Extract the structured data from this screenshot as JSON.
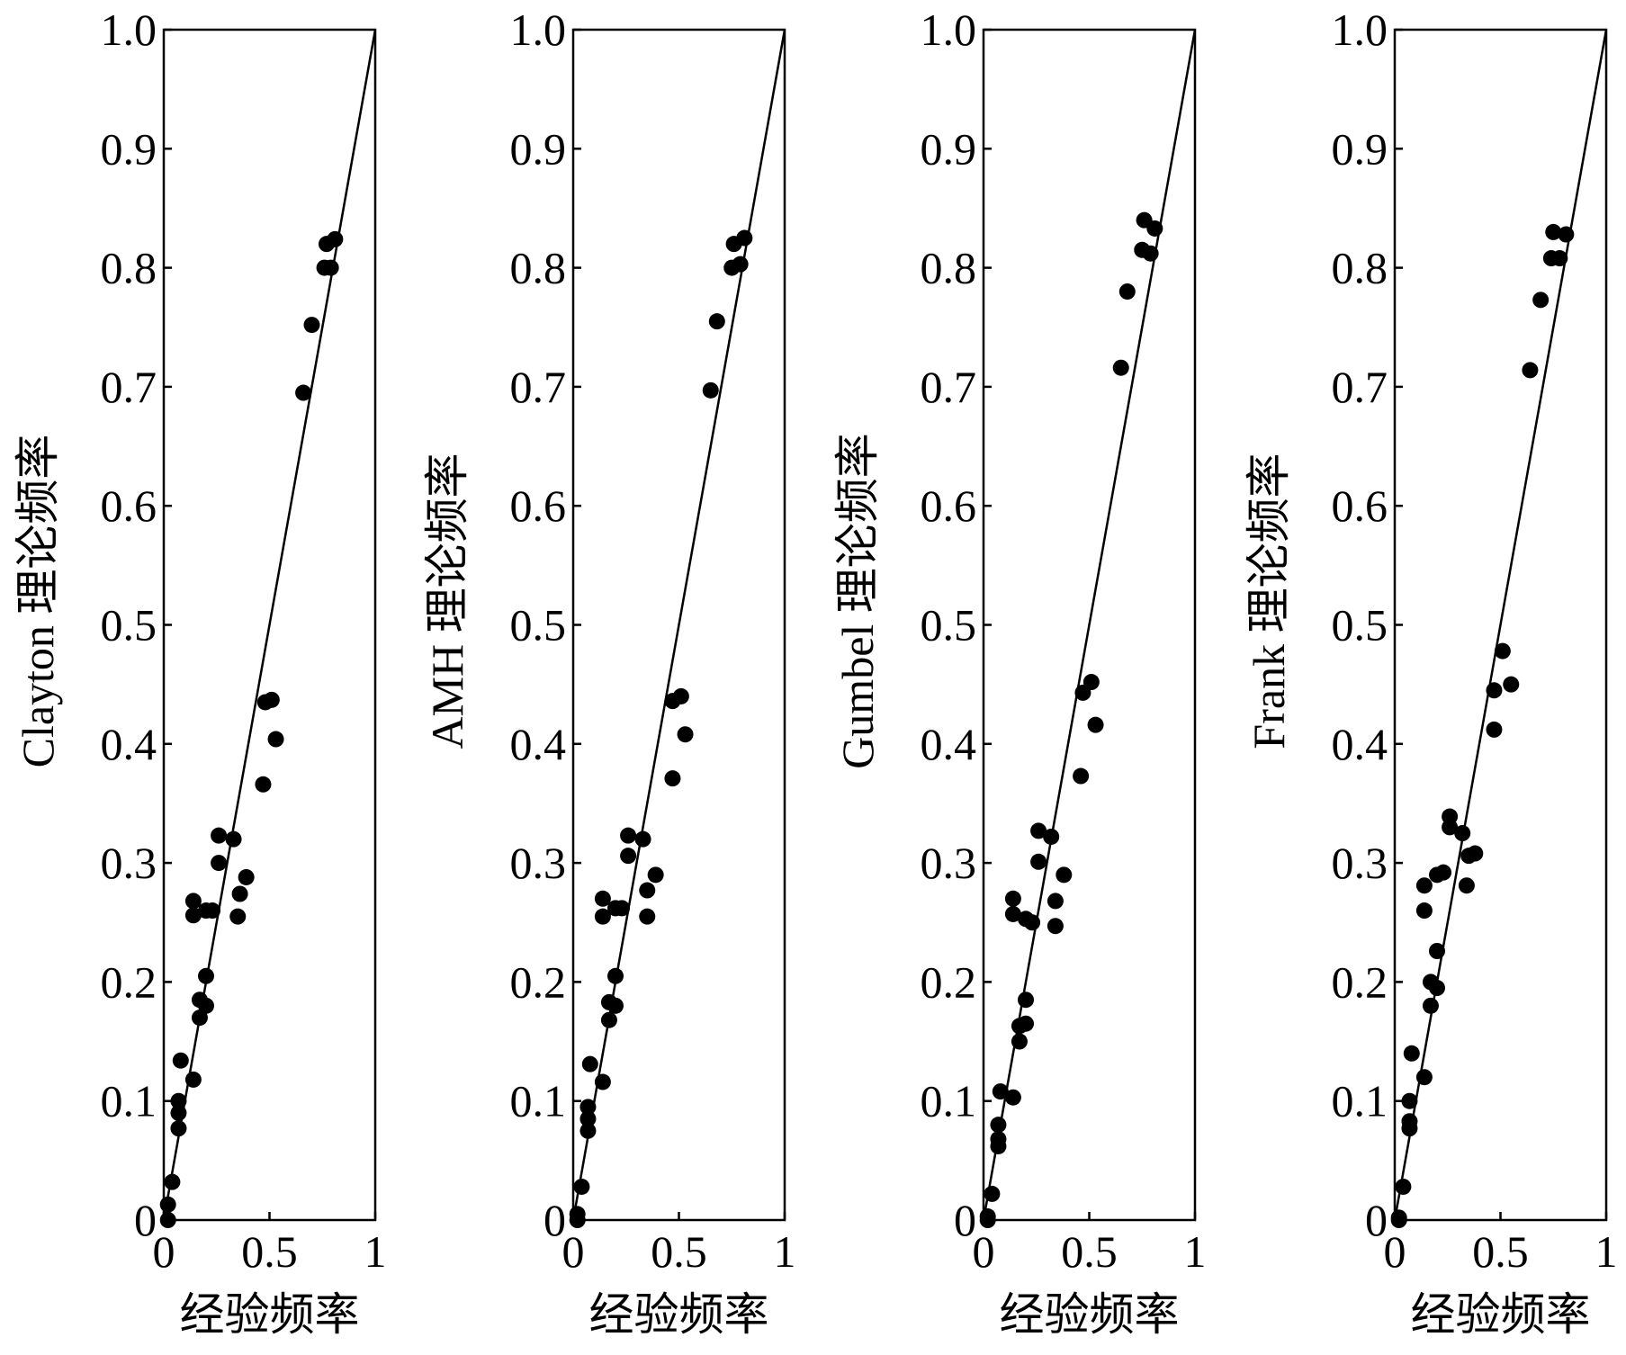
{
  "chart_data": [
    {
      "type": "scatter",
      "xlabel": "经验频率",
      "ylabel": "Clayton 理论频率",
      "xlim": [
        0,
        1
      ],
      "ylim": [
        0,
        1
      ],
      "xticks": [
        "0",
        "0.5",
        "1"
      ],
      "yticks": [
        "0",
        "0.1",
        "0.2",
        "0.3",
        "0.4",
        "0.5",
        "0.6",
        "0.7",
        "0.8",
        "0.9",
        "1.0"
      ],
      "grid": false,
      "reference_line": [
        [
          0,
          0
        ],
        [
          1,
          1
        ]
      ],
      "series": [
        {
          "points": [
            [
              0.02,
              0.0
            ],
            [
              0.02,
              0.013
            ],
            [
              0.04,
              0.032
            ],
            [
              0.07,
              0.077
            ],
            [
              0.07,
              0.09
            ],
            [
              0.07,
              0.1
            ],
            [
              0.08,
              0.134
            ],
            [
              0.14,
              0.118
            ],
            [
              0.14,
              0.256
            ],
            [
              0.14,
              0.268
            ],
            [
              0.17,
              0.17
            ],
            [
              0.17,
              0.185
            ],
            [
              0.2,
              0.18
            ],
            [
              0.2,
              0.205
            ],
            [
              0.2,
              0.26
            ],
            [
              0.23,
              0.26
            ],
            [
              0.26,
              0.3
            ],
            [
              0.26,
              0.323
            ],
            [
              0.33,
              0.32
            ],
            [
              0.35,
              0.255
            ],
            [
              0.36,
              0.274
            ],
            [
              0.39,
              0.288
            ],
            [
              0.47,
              0.366
            ],
            [
              0.48,
              0.435
            ],
            [
              0.51,
              0.437
            ],
            [
              0.53,
              0.404
            ],
            [
              0.66,
              0.695
            ],
            [
              0.7,
              0.752
            ],
            [
              0.76,
              0.8
            ],
            [
              0.77,
              0.82
            ],
            [
              0.79,
              0.8
            ],
            [
              0.81,
              0.824
            ]
          ]
        }
      ]
    },
    {
      "type": "scatter",
      "xlabel": "经验频率",
      "ylabel": "AMH 理论频率",
      "xlim": [
        0,
        1
      ],
      "ylim": [
        0,
        1
      ],
      "xticks": [
        "0",
        "0.5",
        "1"
      ],
      "yticks": [
        "0",
        "0.1",
        "0.2",
        "0.3",
        "0.4",
        "0.5",
        "0.6",
        "0.7",
        "0.8",
        "0.9",
        "1.0"
      ],
      "grid": false,
      "reference_line": [
        [
          0,
          0
        ],
        [
          1,
          1
        ]
      ],
      "series": [
        {
          "points": [
            [
              0.02,
              0.0
            ],
            [
              0.02,
              0.005
            ],
            [
              0.04,
              0.028
            ],
            [
              0.07,
              0.075
            ],
            [
              0.07,
              0.085
            ],
            [
              0.07,
              0.095
            ],
            [
              0.08,
              0.131
            ],
            [
              0.14,
              0.116
            ],
            [
              0.14,
              0.255
            ],
            [
              0.14,
              0.27
            ],
            [
              0.17,
              0.168
            ],
            [
              0.17,
              0.183
            ],
            [
              0.2,
              0.18
            ],
            [
              0.2,
              0.205
            ],
            [
              0.2,
              0.262
            ],
            [
              0.23,
              0.262
            ],
            [
              0.26,
              0.306
            ],
            [
              0.26,
              0.323
            ],
            [
              0.33,
              0.32
            ],
            [
              0.35,
              0.255
            ],
            [
              0.35,
              0.277
            ],
            [
              0.39,
              0.29
            ],
            [
              0.47,
              0.371
            ],
            [
              0.47,
              0.436
            ],
            [
              0.51,
              0.44
            ],
            [
              0.53,
              0.408
            ],
            [
              0.65,
              0.697
            ],
            [
              0.68,
              0.755
            ],
            [
              0.75,
              0.8
            ],
            [
              0.76,
              0.82
            ],
            [
              0.79,
              0.803
            ],
            [
              0.81,
              0.825
            ]
          ]
        }
      ]
    },
    {
      "type": "scatter",
      "xlabel": "经验频率",
      "ylabel": "Gumbel 理论频率",
      "xlim": [
        0,
        1
      ],
      "ylim": [
        0,
        1
      ],
      "xticks": [
        "0",
        "0.5",
        "1"
      ],
      "yticks": [
        "0",
        "0.1",
        "0.2",
        "0.3",
        "0.4",
        "0.5",
        "0.6",
        "0.7",
        "0.8",
        "0.9",
        "1.0"
      ],
      "grid": false,
      "reference_line": [
        [
          0,
          0
        ],
        [
          1,
          1
        ]
      ],
      "series": [
        {
          "points": [
            [
              0.02,
              0.0
            ],
            [
              0.02,
              0.003
            ],
            [
              0.04,
              0.022
            ],
            [
              0.07,
              0.062
            ],
            [
              0.07,
              0.068
            ],
            [
              0.07,
              0.08
            ],
            [
              0.08,
              0.108
            ],
            [
              0.14,
              0.103
            ],
            [
              0.14,
              0.257
            ],
            [
              0.14,
              0.27
            ],
            [
              0.17,
              0.15
            ],
            [
              0.17,
              0.163
            ],
            [
              0.2,
              0.165
            ],
            [
              0.2,
              0.185
            ],
            [
              0.2,
              0.253
            ],
            [
              0.23,
              0.25
            ],
            [
              0.26,
              0.301
            ],
            [
              0.26,
              0.327
            ],
            [
              0.32,
              0.322
            ],
            [
              0.34,
              0.247
            ],
            [
              0.34,
              0.268
            ],
            [
              0.38,
              0.29
            ],
            [
              0.46,
              0.373
            ],
            [
              0.47,
              0.443
            ],
            [
              0.51,
              0.452
            ],
            [
              0.53,
              0.416
            ],
            [
              0.65,
              0.716
            ],
            [
              0.68,
              0.78
            ],
            [
              0.75,
              0.815
            ],
            [
              0.76,
              0.84
            ],
            [
              0.79,
              0.812
            ],
            [
              0.81,
              0.833
            ]
          ]
        }
      ]
    },
    {
      "type": "scatter",
      "xlabel": "经验频率",
      "ylabel": "Frank 理论频率",
      "xlim": [
        0,
        1
      ],
      "ylim": [
        0,
        1
      ],
      "xticks": [
        "0",
        "0.5",
        "1"
      ],
      "yticks": [
        "0",
        "0.1",
        "0.2",
        "0.3",
        "0.4",
        "0.5",
        "0.6",
        "0.7",
        "0.8",
        "0.9",
        "1.0"
      ],
      "grid": false,
      "reference_line": [
        [
          0,
          0
        ],
        [
          1,
          1
        ]
      ],
      "series": [
        {
          "points": [
            [
              0.02,
              0.0
            ],
            [
              0.02,
              0.002
            ],
            [
              0.04,
              0.028
            ],
            [
              0.07,
              0.077
            ],
            [
              0.07,
              0.083
            ],
            [
              0.07,
              0.1
            ],
            [
              0.08,
              0.14
            ],
            [
              0.14,
              0.12
            ],
            [
              0.14,
              0.26
            ],
            [
              0.14,
              0.281
            ],
            [
              0.17,
              0.18
            ],
            [
              0.17,
              0.2
            ],
            [
              0.2,
              0.195
            ],
            [
              0.2,
              0.226
            ],
            [
              0.2,
              0.29
            ],
            [
              0.23,
              0.292
            ],
            [
              0.26,
              0.33
            ],
            [
              0.26,
              0.339
            ],
            [
              0.32,
              0.325
            ],
            [
              0.34,
              0.281
            ],
            [
              0.35,
              0.306
            ],
            [
              0.38,
              0.308
            ],
            [
              0.47,
              0.412
            ],
            [
              0.47,
              0.445
            ],
            [
              0.51,
              0.478
            ],
            [
              0.55,
              0.45
            ],
            [
              0.64,
              0.714
            ],
            [
              0.69,
              0.773
            ],
            [
              0.74,
              0.808
            ],
            [
              0.75,
              0.83
            ],
            [
              0.78,
              0.808
            ],
            [
              0.81,
              0.828
            ]
          ]
        }
      ]
    }
  ]
}
